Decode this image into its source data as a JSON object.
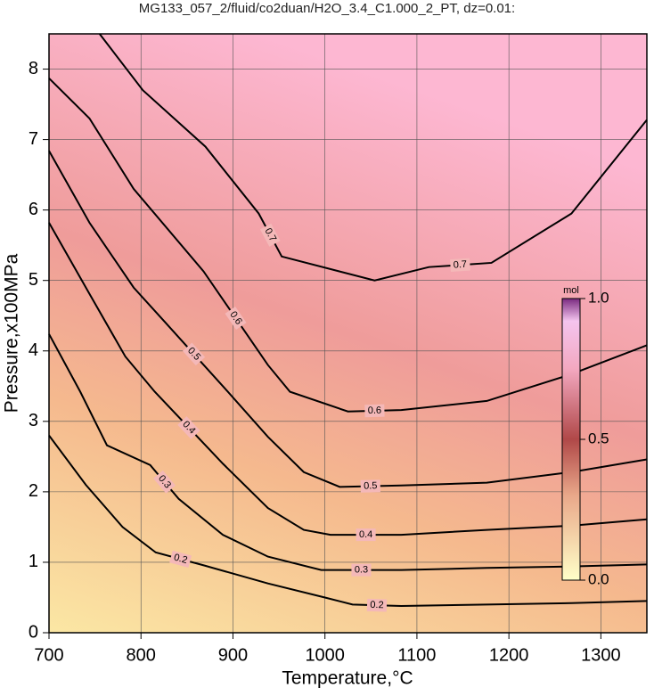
{
  "chart_data": {
    "type": "contour",
    "title": "MG133_057_2/fluid/co2duan/H2O_3.4_C1.000_2_PT, dz=0.01:",
    "x_label": "Temperature,°C",
    "y_label": "Pressure,x100MPa",
    "xlim": [
      700,
      1350
    ],
    "ylim": [
      0,
      8.5
    ],
    "xticks": [
      700,
      800,
      900,
      1000,
      1100,
      1200,
      1300
    ],
    "yticks": [
      0,
      1,
      2,
      3,
      4,
      5,
      6,
      7,
      8
    ],
    "grid": true,
    "contours": [
      {
        "level": 0.2,
        "x": [
          700,
          740,
          780,
          816,
          870,
          938,
          1000,
          1030,
          1083,
          1176,
          1268,
          1350
        ],
        "y": [
          2.8,
          2.1,
          1.5,
          1.14,
          0.95,
          0.7,
          0.5,
          0.4,
          0.38,
          0.4,
          0.42,
          0.45
        ]
      },
      {
        "level": 0.3,
        "x": [
          700,
          734,
          763,
          810,
          841,
          889,
          938,
          996,
          1083,
          1176,
          1268,
          1350
        ],
        "y": [
          4.24,
          3.42,
          2.66,
          2.38,
          1.9,
          1.39,
          1.08,
          0.89,
          0.89,
          0.92,
          0.94,
          0.97
        ]
      },
      {
        "level": 0.4,
        "x": [
          700,
          744,
          783,
          815,
          889,
          938,
          977,
          1006,
          1083,
          1176,
          1268,
          1350
        ],
        "y": [
          5.82,
          4.81,
          3.92,
          3.42,
          2.4,
          1.77,
          1.46,
          1.39,
          1.39,
          1.46,
          1.52,
          1.61
        ]
      },
      {
        "level": 0.5,
        "x": [
          700,
          744,
          792,
          826,
          889,
          938,
          977,
          1016,
          1083,
          1176,
          1268,
          1350
        ],
        "y": [
          6.84,
          5.82,
          4.9,
          4.41,
          3.5,
          2.78,
          2.28,
          2.07,
          2.09,
          2.13,
          2.28,
          2.46
        ]
      },
      {
        "level": 0.6,
        "x": [
          700,
          744,
          792,
          868,
          938,
          962,
          1025,
          1083,
          1176,
          1268,
          1350
        ],
        "y": [
          7.87,
          7.3,
          6.3,
          5.13,
          3.8,
          3.42,
          3.14,
          3.16,
          3.29,
          3.67,
          4.08
        ]
      },
      {
        "level": 0.7,
        "x": [
          755,
          802,
          870,
          928,
          953,
          1054,
          1113,
          1181,
          1268,
          1350
        ],
        "y": [
          8.5,
          7.7,
          6.9,
          5.95,
          5.34,
          5.0,
          5.19,
          5.25,
          5.95,
          7.28
        ]
      }
    ],
    "colorbar": {
      "label": "mol",
      "lim": [
        0,
        1
      ],
      "ticks": [
        {
          "value": 1,
          "label": "1.0"
        },
        {
          "value": 0.5,
          "label": "0.5"
        },
        {
          "value": 0,
          "label": "0.0"
        }
      ]
    }
  }
}
